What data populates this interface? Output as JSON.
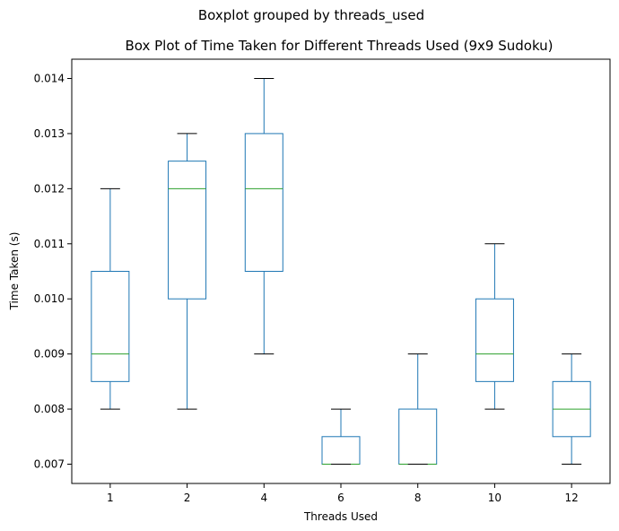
{
  "chart_data": {
    "type": "box",
    "suptitle": "Boxplot grouped by threads_used",
    "title": "Box Plot of Time Taken for Different Threads Used (9x9 Sudoku)",
    "xlabel": "Threads Used",
    "ylabel": "Time Taken (s)",
    "categories": [
      "1",
      "2",
      "4",
      "6",
      "8",
      "10",
      "12"
    ],
    "ylim": [
      0.00665,
      0.01435
    ],
    "yticks": [
      "0.007",
      "0.008",
      "0.009",
      "0.010",
      "0.011",
      "0.012",
      "0.013",
      "0.014"
    ],
    "grid": false,
    "colors": {
      "box": "#1f77b4",
      "median": "#2ca02c",
      "cap": "#000000"
    },
    "boxes": [
      {
        "category": "1",
        "whisker_low": 0.008,
        "q1": 0.0085,
        "median": 0.009,
        "q3": 0.0105,
        "whisker_high": 0.012
      },
      {
        "category": "2",
        "whisker_low": 0.008,
        "q1": 0.01,
        "median": 0.012,
        "q3": 0.0125,
        "whisker_high": 0.013
      },
      {
        "category": "4",
        "whisker_low": 0.009,
        "q1": 0.0105,
        "median": 0.012,
        "q3": 0.013,
        "whisker_high": 0.014
      },
      {
        "category": "6",
        "whisker_low": 0.007,
        "q1": 0.007,
        "median": 0.007,
        "q3": 0.0075,
        "whisker_high": 0.008
      },
      {
        "category": "8",
        "whisker_low": 0.007,
        "q1": 0.007,
        "median": 0.007,
        "q3": 0.008,
        "whisker_high": 0.009
      },
      {
        "category": "10",
        "whisker_low": 0.008,
        "q1": 0.0085,
        "median": 0.009,
        "q3": 0.01,
        "whisker_high": 0.011
      },
      {
        "category": "12",
        "whisker_low": 0.007,
        "q1": 0.0075,
        "median": 0.008,
        "q3": 0.0085,
        "whisker_high": 0.009
      }
    ]
  }
}
